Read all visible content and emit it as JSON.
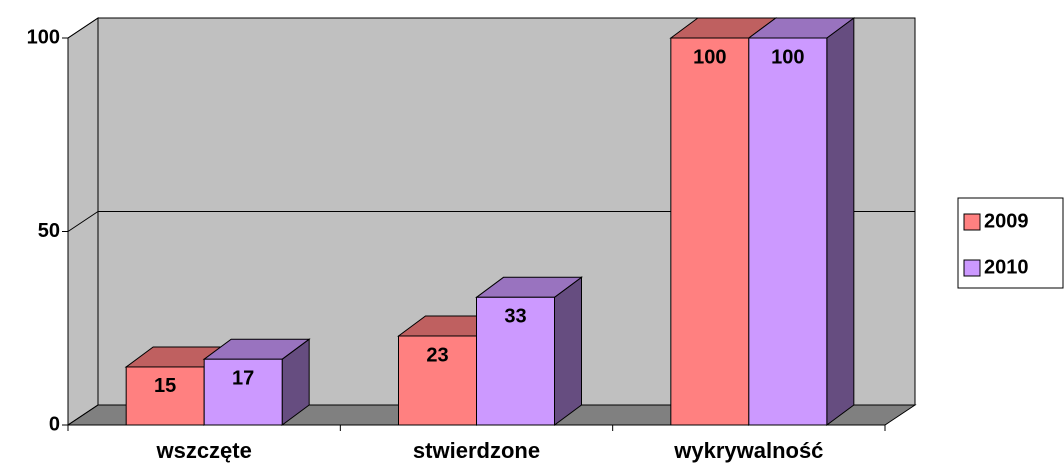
{
  "chart_data": {
    "type": "bar",
    "categories": [
      "wszczęte",
      "stwierdzone",
      "wykrywalność"
    ],
    "series": [
      {
        "name": "2009",
        "color": "#ff8080",
        "values": [
          15,
          23,
          100
        ]
      },
      {
        "name": "2010",
        "color": "#cc99ff",
        "values": [
          17,
          33,
          100
        ]
      }
    ],
    "ylim": [
      0,
      100
    ],
    "yticks": [
      0,
      50,
      100
    ],
    "grid": true,
    "legend": "right"
  }
}
